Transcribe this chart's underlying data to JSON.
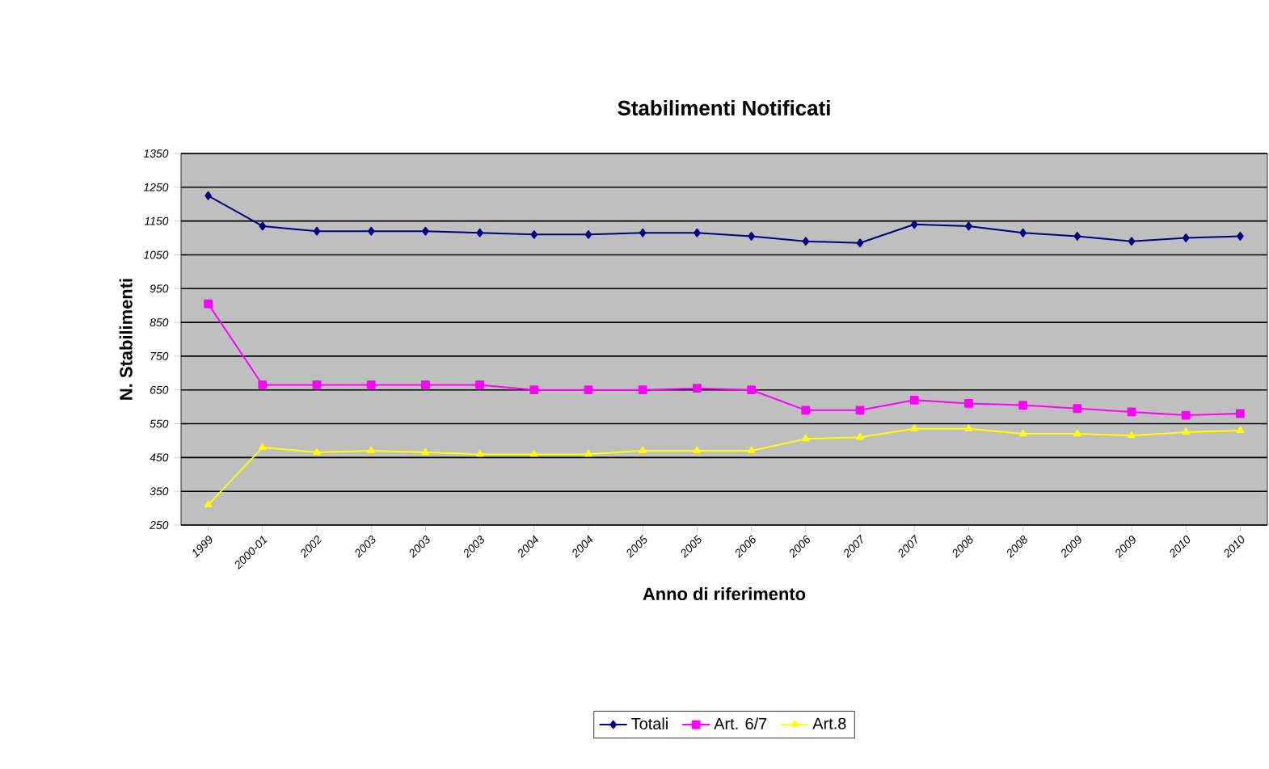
{
  "chart_data": {
    "type": "line",
    "title": "Stabilimenti Notificati",
    "xlabel": "Anno di riferimento",
    "ylabel": "N. Stabilimenti",
    "categories": [
      "1999",
      "2000-01",
      "2002",
      "2003",
      "2003",
      "2003",
      "2004",
      "2004",
      "2005",
      "2005",
      "2006",
      "2006",
      "2007",
      "2007",
      "2008",
      "2008",
      "2009",
      "2009",
      "2010",
      "2010"
    ],
    "series": [
      {
        "name": "Totali",
        "color": "#000080",
        "marker": "diamond",
        "values": [
          1225,
          1135,
          1120,
          1120,
          1120,
          1115,
          1110,
          1110,
          1115,
          1115,
          1105,
          1090,
          1085,
          1140,
          1135,
          1115,
          1105,
          1090,
          1100,
          1105
        ]
      },
      {
        "name": "Art. 6/7",
        "color": "#ff00ff",
        "marker": "square",
        "values": [
          905,
          665,
          665,
          665,
          665,
          665,
          650,
          650,
          650,
          655,
          650,
          590,
          590,
          620,
          610,
          605,
          595,
          585,
          575,
          580
        ]
      },
      {
        "name": "Art.8",
        "color": "#ffff00",
        "marker": "triangle",
        "values": [
          310,
          480,
          465,
          470,
          465,
          460,
          460,
          460,
          470,
          470,
          470,
          505,
          510,
          535,
          535,
          520,
          520,
          515,
          525,
          530
        ]
      }
    ],
    "ylim": [
      250,
      1350
    ],
    "yticks": [
      250,
      350,
      450,
      550,
      650,
      750,
      850,
      950,
      1050,
      1150,
      1250,
      1350
    ],
    "grid": "y",
    "legend": "bottom"
  }
}
